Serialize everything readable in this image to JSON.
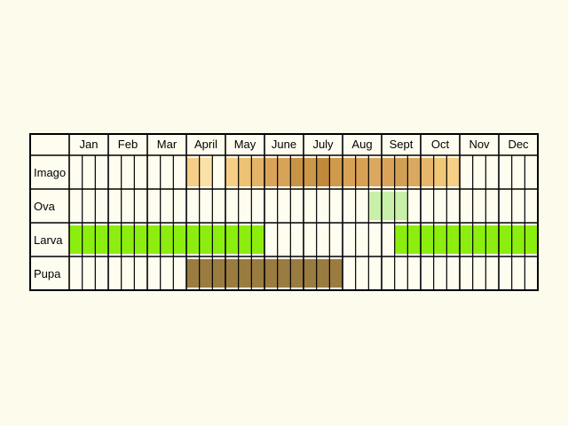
{
  "months": [
    "Jan",
    "Feb",
    "Mar",
    "April",
    "May",
    "June",
    "July",
    "Aug",
    "Sept",
    "Oct",
    "Nov",
    "Dec"
  ],
  "stages": [
    {
      "label": "Imago",
      "color": "#d9a45a",
      "periods": [
        {
          "month": 4,
          "decade": 1,
          "shade": "#f5cf87"
        },
        {
          "month": 4,
          "decade": 2,
          "shade": "#fbe1a8"
        },
        {
          "month": 5,
          "decade": 1,
          "shade": "#f6cf86"
        },
        {
          "month": 5,
          "decade": 2,
          "shade": "#edc272"
        },
        {
          "month": 5,
          "decade": 3,
          "shade": "#e3b368"
        },
        {
          "month": 6,
          "decade": 1,
          "shade": "#d9a45a"
        },
        {
          "month": 6,
          "decade": 2,
          "shade": "#d8a357"
        },
        {
          "month": 6,
          "decade": 3,
          "shade": "#c99344"
        },
        {
          "month": 7,
          "decade": 1,
          "shade": "#cd9749"
        },
        {
          "month": 7,
          "decade": 2,
          "shade": "#c08a3a"
        },
        {
          "month": 7,
          "decade": 3,
          "shade": "#cf9a4c"
        },
        {
          "month": 8,
          "decade": 1,
          "shade": "#d8a357"
        },
        {
          "month": 8,
          "decade": 2,
          "shade": "#d6a055"
        },
        {
          "month": 8,
          "decade": 3,
          "shade": "#dba85f"
        },
        {
          "month": 9,
          "decade": 1,
          "shade": "#d9a45a"
        },
        {
          "month": 9,
          "decade": 2,
          "shade": "#d2a054"
        },
        {
          "month": 9,
          "decade": 3,
          "shade": "#dba85f"
        },
        {
          "month": 10,
          "decade": 1,
          "shade": "#e6b76b"
        },
        {
          "month": 10,
          "decade": 2,
          "shade": "#f0c677"
        },
        {
          "month": 10,
          "decade": 3,
          "shade": "#f6cf86"
        }
      ]
    },
    {
      "label": "Ova",
      "color": "#c8f0a8",
      "periods": [
        {
          "month": 8,
          "decade": 3,
          "shade": "#c8f0a8"
        },
        {
          "month": 9,
          "decade": 1,
          "shade": "#c8f0a8"
        },
        {
          "month": 9,
          "decade": 2,
          "shade": "#c8f0a8"
        }
      ]
    },
    {
      "label": "Larva",
      "color": "#8cee0e",
      "spans": [
        {
          "from_month": 1,
          "from_decade": 1,
          "to_month": 5,
          "to_decade": 3
        },
        {
          "from_month": 9,
          "from_decade": 2,
          "to_month": 12,
          "to_decade": 3
        }
      ]
    },
    {
      "label": "Pupa",
      "color": "#9a7c40",
      "spans": [
        {
          "from_month": 4,
          "from_decade": 1,
          "to_month": 7,
          "to_decade": 3
        }
      ]
    }
  ]
}
